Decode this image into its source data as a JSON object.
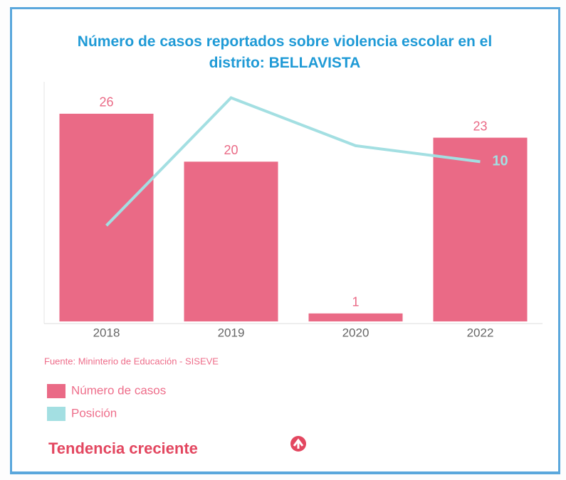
{
  "chart_data": {
    "type": "bar_line",
    "title": "Número de casos reportados sobre violencia escolar en el distrito: BELLAVISTA",
    "categories": [
      "2018",
      "2019",
      "2020",
      "2022"
    ],
    "series": [
      {
        "name": "Número de casos",
        "type": "bar",
        "color": "#ea6a86",
        "values": [
          26,
          20,
          1,
          23
        ]
      },
      {
        "name": "Posición",
        "type": "line",
        "axis": "y2",
        "color": "#a3dfe2",
        "values": [
          6,
          14,
          11,
          10
        ],
        "value_labels": [
          null,
          null,
          null,
          "10"
        ]
      }
    ],
    "ylim": [
      0,
      30
    ],
    "y2lim": [
      0,
      15
    ],
    "source": "Fuente: Mininterio de Educación - SISEVE",
    "trend": "Tendencia creciente"
  }
}
